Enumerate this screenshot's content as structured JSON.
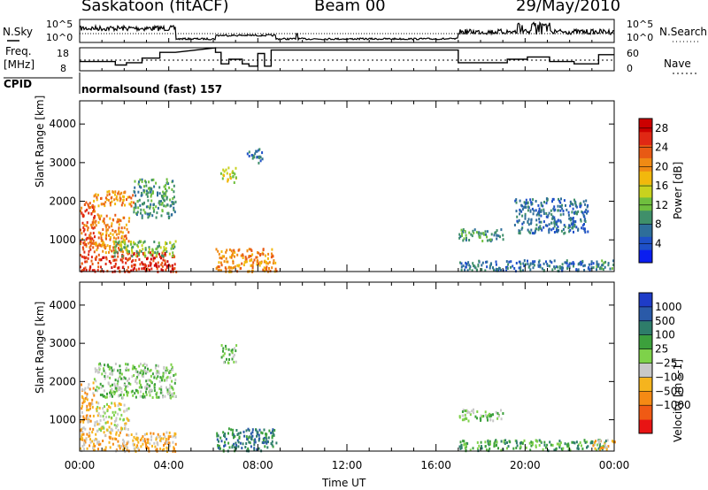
{
  "header": {
    "station": "Saskatoon (fitACF)",
    "beam": "Beam 00",
    "date": "29/May/2010"
  },
  "summary": {
    "nsky_label": "N.Sky",
    "nsky_ticks": [
      "10^5",
      "10^0"
    ],
    "nsearch_label": "N.Search",
    "freq_label_1": "Freq.",
    "freq_label_2": "[MHz]",
    "freq_ticks": [
      "18",
      "8"
    ],
    "nave_label": "Nave",
    "nave_ticks": [
      "60",
      "0"
    ],
    "cpid_label": "CPID",
    "cpid_value": "normalsound (fast) 157"
  },
  "colors": {
    "power": [
      "#0a1ef0",
      "#1e50c8",
      "#2e6e9a",
      "#3f8f6a",
      "#6fbf3e",
      "#c8d21e",
      "#f2b80c",
      "#f08a14",
      "#e85a14",
      "#e02814",
      "#cc0000"
    ],
    "velocity": [
      "#e81414",
      "#f05a14",
      "#f58a14",
      "#f5b41e",
      "#c8c8c8",
      "#7ed24a",
      "#3ca03c",
      "#2e7d6a",
      "#2a5aa8",
      "#1e3cc8"
    ]
  },
  "chart_data": [
    {
      "type": "line",
      "title": "N.Sky",
      "yscale": "log",
      "ylim": [
        1,
        100000
      ],
      "xlim": [
        0,
        24
      ],
      "note_series": "N.Search (dotted)"
    },
    {
      "type": "line",
      "title": "Freq. [MHz]",
      "ylim": [
        8,
        18
      ],
      "xlim": [
        0,
        24
      ],
      "series": [
        {
          "name": "Freq.",
          "x": [
            0,
            1.6,
            1.6,
            2.1,
            2.1,
            2.8,
            2.8,
            3.6,
            3.6,
            4.3,
            6.1,
            6.1,
            6.35,
            6.35,
            6.7,
            6.7,
            7.3,
            7.3,
            7.6,
            7.6,
            8.0,
            8.0,
            8.3,
            8.3,
            8.6,
            8.6,
            17.0,
            17.0,
            17.5,
            17.5,
            19.2,
            19.2,
            20.1,
            20.1,
            21.1,
            21.1,
            22.2,
            22.2,
            23.3,
            23.3,
            24
          ],
          "y": [
            12,
            12,
            10.5,
            10.5,
            11.5,
            11.5,
            13.5,
            13.5,
            16,
            16,
            18,
            16,
            16,
            11,
            11,
            13,
            13,
            11,
            11,
            10,
            10,
            15.5,
            15.5,
            10,
            10,
            17,
            17,
            11.5,
            11.5,
            11.5,
            11.5,
            13,
            13,
            14,
            14,
            12,
            12,
            11,
            11,
            15,
            15
          ]
        }
      ],
      "secondary": {
        "name": "Nave",
        "ylim": [
          0,
          60
        ]
      }
    },
    {
      "type": "heatmap",
      "title": "Power",
      "xlabel": "Time UT",
      "ylabel": "Slant Range [km]",
      "colorbar_label": "Power [dB]",
      "xlim": [
        0,
        24
      ],
      "ylim": [
        180,
        4600
      ],
      "x_ticks": [
        "00:00",
        "04:00",
        "08:00",
        "12:00",
        "16:00",
        "20:00",
        "00:00"
      ],
      "y_ticks": [
        1000,
        2000,
        3000,
        4000
      ],
      "colorbar_ticks": [
        4,
        8,
        12,
        16,
        20,
        24,
        28
      ],
      "colorbar_range": [
        0,
        30
      ],
      "regions": [
        {
          "x": [
            0,
            4.3
          ],
          "y": [
            200,
            700
          ],
          "value": 26
        },
        {
          "x": [
            0,
            0.7
          ],
          "y": [
            700,
            2000
          ],
          "value": 24
        },
        {
          "x": [
            0.7,
            2.2
          ],
          "y": [
            700,
            1700
          ],
          "value": 22
        },
        {
          "x": [
            1.5,
            4.3
          ],
          "y": [
            600,
            1000
          ],
          "value": 12
        },
        {
          "x": [
            0.6,
            2.4
          ],
          "y": [
            1900,
            2300
          ],
          "value": 20
        },
        {
          "x": [
            2.4,
            4.3
          ],
          "y": [
            1600,
            2600
          ],
          "value": 8
        },
        {
          "x": [
            6.1,
            8.8
          ],
          "y": [
            200,
            800
          ],
          "value": 20
        },
        {
          "x": [
            6.3,
            7.0
          ],
          "y": [
            2500,
            2900
          ],
          "value": 14
        },
        {
          "x": [
            7.5,
            8.2
          ],
          "y": [
            3000,
            3400
          ],
          "value": 6
        },
        {
          "x": [
            17.0,
            19.0
          ],
          "y": [
            1000,
            1300
          ],
          "value": 8
        },
        {
          "x": [
            17.0,
            23.6
          ],
          "y": [
            220,
            500
          ],
          "value": 5
        },
        {
          "x": [
            19.5,
            22.8
          ],
          "y": [
            1200,
            2100
          ],
          "value": 6
        },
        {
          "x": [
            23.0,
            24.0
          ],
          "y": [
            250,
            500
          ],
          "value": 8
        }
      ]
    },
    {
      "type": "heatmap",
      "title": "Velocity",
      "xlabel": "Time UT",
      "ylabel": "Slant Range [km]",
      "colorbar_label": "Velocity [m s-1]",
      "xlim": [
        0,
        24
      ],
      "ylim": [
        180,
        4600
      ],
      "x_ticks": [
        "00:00",
        "04:00",
        "08:00",
        "12:00",
        "16:00",
        "20:00",
        "00:00"
      ],
      "y_ticks": [
        1000,
        2000,
        3000,
        4000
      ],
      "colorbar_ticks": [
        1000,
        500,
        100,
        25,
        -25,
        -100,
        -500,
        -1000
      ],
      "regions": [
        {
          "x": [
            0,
            4.3
          ],
          "y": [
            200,
            700
          ],
          "value": -100
        },
        {
          "x": [
            0,
            0.7
          ],
          "y": [
            700,
            2000
          ],
          "value": -300
        },
        {
          "x": [
            0.7,
            2.2
          ],
          "y": [
            700,
            1500
          ],
          "value": -50
        },
        {
          "x": [
            0.6,
            4.3
          ],
          "y": [
            1600,
            2500
          ],
          "value": 0
        },
        {
          "x": [
            6.1,
            8.8
          ],
          "y": [
            200,
            800
          ],
          "value": 200
        },
        {
          "x": [
            6.3,
            7.0
          ],
          "y": [
            2500,
            3000
          ],
          "value": 0
        },
        {
          "x": [
            17.0,
            19.0
          ],
          "y": [
            1000,
            1300
          ],
          "value": 0
        },
        {
          "x": [
            17.0,
            23.6
          ],
          "y": [
            220,
            500
          ],
          "value": 50
        },
        {
          "x": [
            23.0,
            24.0
          ],
          "y": [
            250,
            500
          ],
          "value": -200
        }
      ]
    }
  ]
}
